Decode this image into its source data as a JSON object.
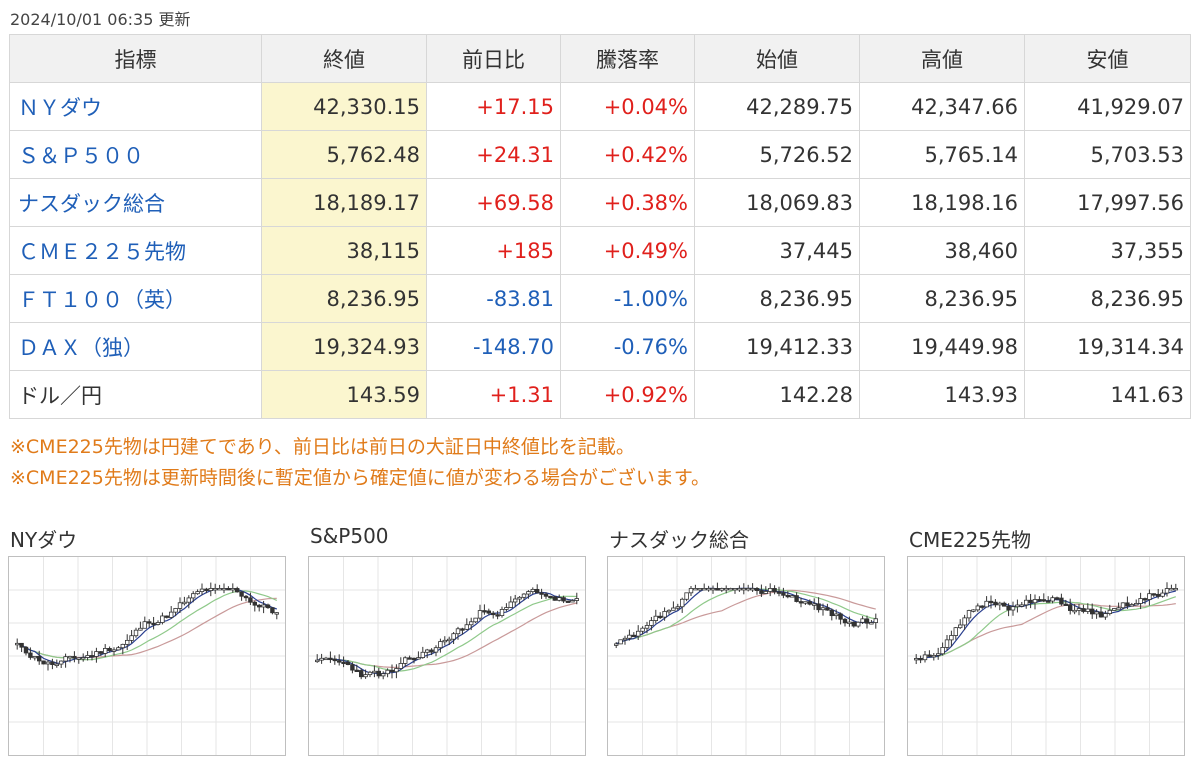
{
  "updated": "2024/10/01 06:35 更新",
  "table": {
    "headers": [
      "指標",
      "終値",
      "前日比",
      "騰落率",
      "始値",
      "高値",
      "安値"
    ],
    "rows": [
      {
        "name": "ＮＹダウ",
        "link": true,
        "close": "42,330.15",
        "change": "+17.15",
        "rate": "+0.04%",
        "open": "42,289.75",
        "high": "42,347.66",
        "low": "41,929.07",
        "dir": "up"
      },
      {
        "name": "Ｓ＆Ｐ５００",
        "link": true,
        "close": "5,762.48",
        "change": "+24.31",
        "rate": "+0.42%",
        "open": "5,726.52",
        "high": "5,765.14",
        "low": "5,703.53",
        "dir": "up"
      },
      {
        "name": "ナスダック総合",
        "link": true,
        "close": "18,189.17",
        "change": "+69.58",
        "rate": "+0.38%",
        "open": "18,069.83",
        "high": "18,198.16",
        "low": "17,997.56",
        "dir": "up"
      },
      {
        "name": "ＣＭＥ２２５先物",
        "link": true,
        "close": "38,115",
        "change": "+185",
        "rate": "+0.49%",
        "open": "37,445",
        "high": "38,460",
        "low": "37,355",
        "dir": "up"
      },
      {
        "name": "ＦＴ１００（英）",
        "link": true,
        "close": "8,236.95",
        "change": "-83.81",
        "rate": "-1.00%",
        "open": "8,236.95",
        "high": "8,236.95",
        "low": "8,236.95",
        "dir": "down"
      },
      {
        "name": "ＤＡＸ（独）",
        "link": true,
        "close": "19,324.93",
        "change": "-148.70",
        "rate": "-0.76%",
        "open": "19,412.33",
        "high": "19,449.98",
        "low": "19,314.34",
        "dir": "down"
      },
      {
        "name": "ドル／円",
        "link": false,
        "close": "143.59",
        "change": "+1.31",
        "rate": "+0.92%",
        "open": "142.28",
        "high": "143.93",
        "low": "141.63",
        "dir": "up"
      }
    ]
  },
  "notes": [
    "※CME225先物は円建てであり、前日比は前日の大証日中終値比を記載。",
    "※CME225先物は更新時間後に暫定値から確定値に値が変わる場合がございます。"
  ],
  "charts": [
    {
      "title": "NYダウ",
      "seed": 11
    },
    {
      "title": "S&P500",
      "seed": 23
    },
    {
      "title": "ナスダック総合",
      "seed": 37
    },
    {
      "title": "CME225先物",
      "seed": 51
    }
  ],
  "colors": {
    "up": "#e0201c",
    "down": "#1f5fb8",
    "link": "#1f5fb8",
    "note": "#e07b1a",
    "close_bg": "#fbf6cf",
    "ma_short": "#2a3f8f",
    "ma_mid": "#8fc98a",
    "ma_long": "#c99a9a"
  }
}
